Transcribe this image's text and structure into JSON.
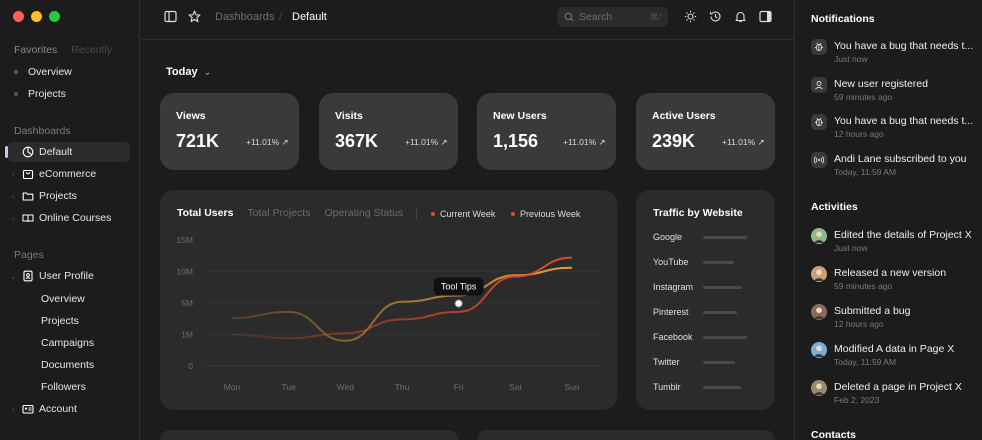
{
  "sidebar": {
    "tabs": [
      "Favorites",
      "Recently"
    ],
    "favorites": [
      "Overview",
      "Projects"
    ],
    "dashboards_title": "Dashboards",
    "dashboards": [
      {
        "label": "Default",
        "icon": "pie-chart-icon"
      },
      {
        "label": "eCommerce",
        "icon": "shopping-bag-icon"
      },
      {
        "label": "Projects",
        "icon": "folder-icon"
      },
      {
        "label": "Online Courses",
        "icon": "book-open-icon"
      }
    ],
    "pages_title": "Pages",
    "user_profile": "User Profile",
    "user_profile_sub": [
      "Overview",
      "Projects",
      "Campaigns",
      "Documents",
      "Followers"
    ],
    "account": "Account"
  },
  "topbar": {
    "breadcrumb_root": "Dashboards",
    "breadcrumb_sep": "/",
    "breadcrumb_current": "Default",
    "search_placeholder": "Search",
    "search_shortcut": "⌘/"
  },
  "main": {
    "period": "Today",
    "stats": [
      {
        "label": "Views",
        "value": "721K",
        "change": "+11.01%"
      },
      {
        "label": "Visits",
        "value": "367K",
        "change": "+11.01%"
      },
      {
        "label": "New Users",
        "value": "1,156",
        "change": "+11.01%"
      },
      {
        "label": "Active Users",
        "value": "239K",
        "change": "+11.01%"
      }
    ],
    "chart_tabs": [
      "Total Users",
      "Total Projects",
      "Operating Status"
    ],
    "legend": [
      "Current Week",
      "Previous Week"
    ],
    "tooltip": "Tool Tips"
  },
  "chart_data": {
    "type": "line",
    "title": "Total Users",
    "x": [
      "Mon",
      "Tue",
      "Wed",
      "Thu",
      "Fri",
      "Sat",
      "Sun"
    ],
    "yticks": [
      "0",
      "1M",
      "5M",
      "10M",
      "15M"
    ],
    "series": [
      {
        "name": "Current Week",
        "color": "#e44a2a",
        "values": [
          0.25,
          0.22,
          0.26,
          0.37,
          0.43,
          0.71,
          0.86
        ]
      },
      {
        "name": "Previous Week",
        "color": "#d99a3a",
        "values": [
          0.38,
          0.43,
          0.2,
          0.51,
          0.56,
          0.72,
          0.78
        ]
      }
    ],
    "tooltip_label": "Tool Tips"
  },
  "traffic": {
    "title": "Traffic by Website",
    "sites": [
      {
        "name": "Google",
        "share": 0.78
      },
      {
        "name": "YouTube",
        "share": 0.56
      },
      {
        "name": "Instagram",
        "share": 0.7
      },
      {
        "name": "Pinterest",
        "share": 0.6
      },
      {
        "name": "Facebook",
        "share": 0.78
      },
      {
        "name": "Twitter",
        "share": 0.58
      },
      {
        "name": "Tumblr",
        "share": 0.67
      }
    ]
  },
  "notifications": {
    "title": "Notifications",
    "items": [
      {
        "text": "You have a bug that needs t...",
        "time": "Just now",
        "icon": "bug-icon"
      },
      {
        "text": "New user registered",
        "time": "59 minutes ago",
        "icon": "user-icon"
      },
      {
        "text": "You have a bug that needs t...",
        "time": "12 hours ago",
        "icon": "bug-icon"
      },
      {
        "text": "Andi Lane subscribed to you",
        "time": "Today, 11:59 AM",
        "icon": "broadcast-icon"
      }
    ]
  },
  "activities": {
    "title": "Activities",
    "items": [
      {
        "text": "Edited the details of Project X",
        "time": "Just now",
        "avatar_color": "#8fb98a"
      },
      {
        "text": "Released a new version",
        "time": "59 minutes ago",
        "avatar_color": "#c9a07a"
      },
      {
        "text": "Submitted a bug",
        "time": "12 hours ago",
        "avatar_color": "#8a6a5a"
      },
      {
        "text": "Modified A data in Page X",
        "time": "Today, 11:59 AM",
        "avatar_color": "#7ab0d6"
      },
      {
        "text": "Deleted a page in Project X",
        "time": "Feb 2, 2023",
        "avatar_color": "#9a8a70"
      }
    ]
  },
  "contacts": {
    "title": "Contacts"
  }
}
